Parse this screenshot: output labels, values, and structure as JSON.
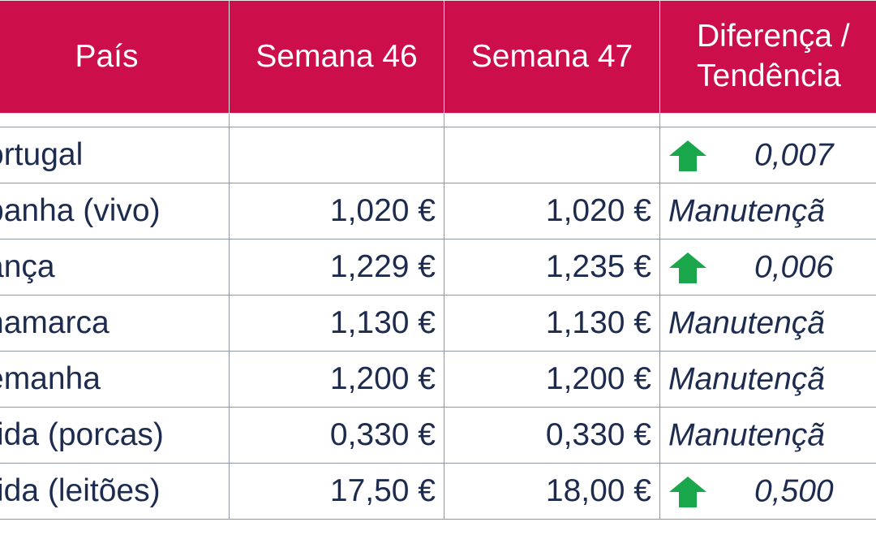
{
  "header": {
    "country": "País",
    "week46": "Semana 46",
    "week47": "Semana 47",
    "diff_line1": "Diferença /",
    "diff_line2": "Tendência"
  },
  "colors": {
    "header_bg": "#cc0f4b",
    "text": "#1d2b4f",
    "arrow": "#1aa64a"
  },
  "rows": [
    {
      "country": "ortugal",
      "week46": "",
      "week47": "",
      "trend": "up",
      "diff": "0,007"
    },
    {
      "country": "panha (vivo)",
      "week46": "1,020 €",
      "week47": "1,020 €",
      "trend": "none",
      "diff": "Manutençã"
    },
    {
      "country": "ança",
      "week46": "1,229 €",
      "week47": "1,235 €",
      "trend": "up",
      "diff": "0,006"
    },
    {
      "country": "namarca",
      "week46": "1,130 €",
      "week47": "1,130 €",
      "trend": "none",
      "diff": "Manutençã"
    },
    {
      "country": "emanha",
      "week46": "1,200 €",
      "week47": "1,200 €",
      "trend": "none",
      "diff": "Manutençã"
    },
    {
      "country": "rida (porcas)",
      "week46": "0,330 €",
      "week47": "0,330 €",
      "trend": "none",
      "diff": "Manutençã"
    },
    {
      "country": "rida (leitões)",
      "week46": "17,50 €",
      "week47": "18,00 €",
      "trend": "up",
      "diff": "0,500"
    }
  ]
}
